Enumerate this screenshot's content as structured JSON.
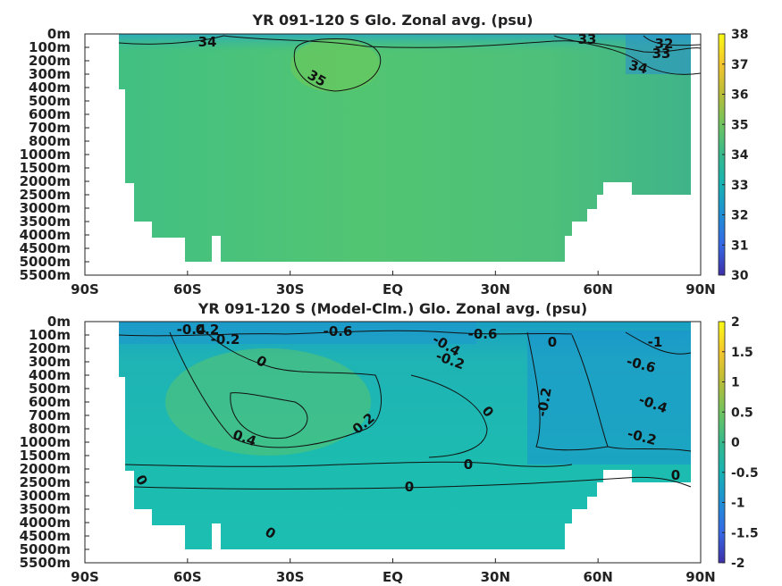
{
  "chart_data": [
    {
      "type": "heatmap",
      "title": "YR 091-120 S Glo. Zonal avg. (psu)",
      "x_ticks": [
        "90S",
        "60S",
        "30S",
        "EQ",
        "30N",
        "60N",
        "90N"
      ],
      "x_tick_values": [
        -90,
        -60,
        -30,
        0,
        30,
        60,
        90
      ],
      "y_ticks": [
        "0m",
        "100m",
        "200m",
        "300m",
        "400m",
        "500m",
        "600m",
        "700m",
        "800m",
        "1000m",
        "1500m",
        "2000m",
        "2500m",
        "3000m",
        "3500m",
        "4000m",
        "4500m",
        "5000m",
        "5500m"
      ],
      "xlim": [
        -90,
        90
      ],
      "colorbar": {
        "ticks": [
          "38",
          "37",
          "36",
          "35",
          "34",
          "33",
          "32",
          "31",
          "30"
        ],
        "range": [
          30,
          38
        ]
      },
      "contour_labels": [
        "34",
        "35",
        "33",
        "32",
        "33",
        "34"
      ],
      "grid": false
    },
    {
      "type": "heatmap",
      "title": "YR 091-120 S (Model-Clm.) Glo. Zonal avg. (psu)",
      "x_ticks": [
        "90S",
        "60S",
        "30S",
        "EQ",
        "30N",
        "60N",
        "90N"
      ],
      "x_tick_values": [
        -90,
        -60,
        -30,
        0,
        30,
        60,
        90
      ],
      "y_ticks": [
        "0m",
        "100m",
        "200m",
        "300m",
        "400m",
        "500m",
        "600m",
        "700m",
        "800m",
        "1000m",
        "1500m",
        "2000m",
        "2500m",
        "3000m",
        "3500m",
        "4000m",
        "4500m",
        "5000m",
        "5500m"
      ],
      "xlim": [
        -90,
        90
      ],
      "colorbar": {
        "ticks": [
          "2",
          "1.5",
          "1",
          "0.5",
          "0",
          "-0.5",
          "-1",
          "-1.5",
          "-2"
        ],
        "range": [
          -2,
          2
        ]
      },
      "contour_labels": [
        "-0.4",
        "-0.2",
        "0.2",
        "0",
        "0.4",
        "0.2",
        "-0.6",
        "-0.4",
        "-0.2",
        "-0.6",
        "0",
        "-0.2",
        "0",
        "-1",
        "-0.6",
        "-0.4",
        "-0.2",
        "0",
        "0",
        "0",
        "0",
        "0"
      ],
      "grid": false
    }
  ]
}
